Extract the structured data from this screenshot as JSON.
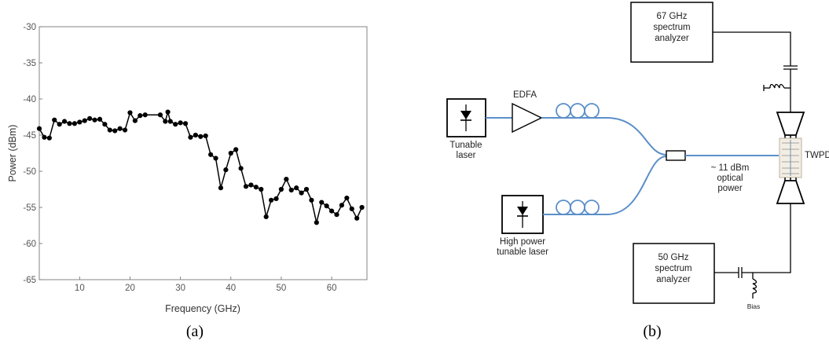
{
  "figure": {
    "caption_a": "(a)",
    "caption_b": "(b)"
  },
  "chart_data": {
    "type": "line",
    "title": "",
    "xlabel": "Frequency (GHz)",
    "ylabel": "Power (dBm)",
    "xlim": [
      2,
      67
    ],
    "ylim": [
      -65,
      -30
    ],
    "xticks": [
      10,
      20,
      30,
      40,
      50,
      60
    ],
    "yticks": [
      -30,
      -35,
      -40,
      -45,
      -50,
      -55,
      -60,
      -65
    ],
    "grid": false,
    "series": [
      {
        "marker": "circle",
        "color": "#000000",
        "x": [
          2,
          3,
          4,
          5,
          6,
          7,
          8,
          9,
          10,
          11,
          12,
          13,
          14,
          15,
          16,
          17,
          18,
          19,
          20,
          21,
          22,
          23,
          26,
          27,
          27.5,
          28,
          29,
          30,
          31,
          32,
          33,
          34,
          35,
          36,
          37,
          38,
          39,
          40,
          41,
          42,
          43,
          44,
          45,
          46,
          47,
          48,
          49,
          50,
          51,
          52,
          53,
          54,
          55,
          56,
          57,
          58,
          59,
          60,
          61,
          62,
          63,
          64,
          65,
          66
        ],
        "y": [
          -44.1,
          -45.3,
          -45.4,
          -42.9,
          -43.5,
          -43.1,
          -43.4,
          -43.4,
          -43.2,
          -43.0,
          -42.7,
          -42.9,
          -42.8,
          -43.5,
          -44.3,
          -44.4,
          -44.1,
          -44.3,
          -41.9,
          -43.0,
          -42.3,
          -42.2,
          -42.2,
          -43.1,
          -41.8,
          -43.1,
          -43.5,
          -43.3,
          -43.4,
          -45.3,
          -45.0,
          -45.2,
          -45.1,
          -47.7,
          -48.2,
          -52.3,
          -49.8,
          -47.5,
          -47.0,
          -49.6,
          -52.1,
          -51.9,
          -52.2,
          -52.5,
          -56.3,
          -54.0,
          -53.8,
          -52.5,
          -51.1,
          -52.6,
          -52.3,
          -53.0,
          -52.5,
          -54.0,
          -57.1,
          -54.3,
          -54.8,
          -55.5,
          -56.0,
          -54.7,
          -53.7,
          -55.2,
          -56.5,
          -55.0
        ]
      }
    ]
  },
  "diagram": {
    "labels": {
      "analyzer_top_l1": "67 GHz",
      "analyzer_top_l2": "spectrum",
      "analyzer_top_l3": "analyzer",
      "analyzer_bottom_l1": "50 GHz",
      "analyzer_bottom_l2": "spectrum",
      "analyzer_bottom_l3": "analyzer",
      "edfa": "EDFA",
      "laser1_l1": "Tunable",
      "laser1_l2": "laser",
      "laser2_l1": "High power",
      "laser2_l2": "tunable laser",
      "twpd": "TWPD",
      "optical_l1": "~ 11 dBm",
      "optical_l2": "optical",
      "optical_l3": "power",
      "bias": "Bias"
    },
    "colors": {
      "fiber": "#5b8fc9",
      "ink": "#000000"
    }
  }
}
